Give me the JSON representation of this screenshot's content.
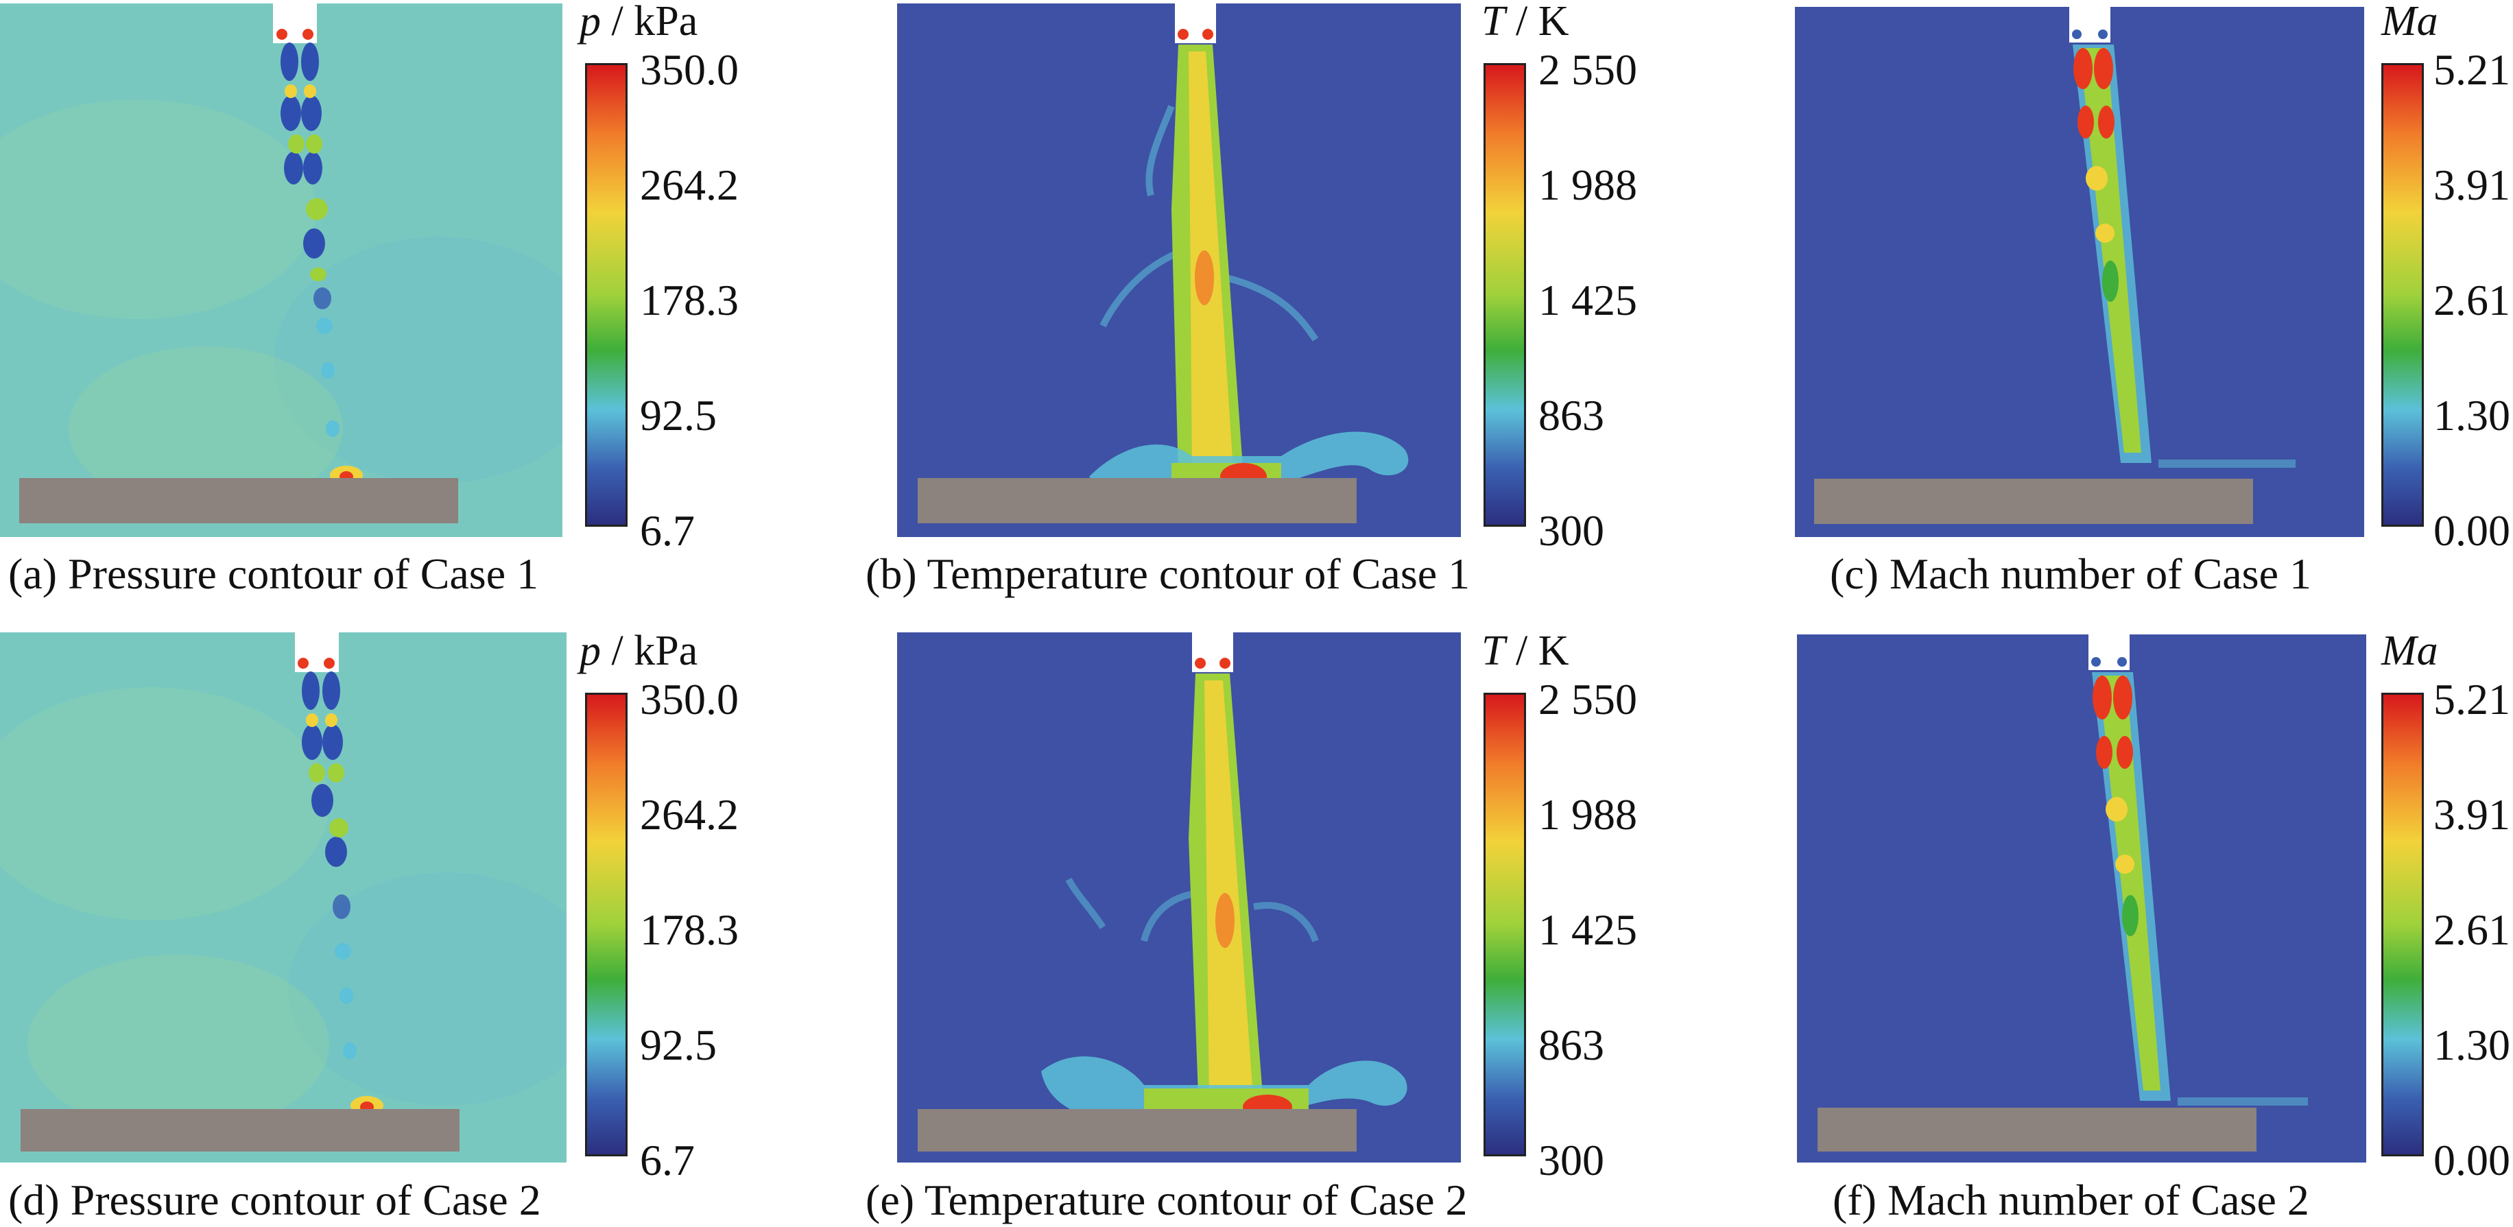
{
  "panels": [
    {
      "id": "a",
      "field": "pressure",
      "caption": "(a) Pressure contour of Case 1",
      "cb_symbol": "p",
      "cb_unit": " / kPa",
      "ticks": [
        "350.0",
        "264.2",
        "178.3",
        "92.5",
        "6.7"
      ]
    },
    {
      "id": "b",
      "field": "temperature",
      "caption": "(b) Temperature contour of Case 1",
      "cb_symbol": "T",
      "cb_unit": " / K",
      "ticks": [
        "2 550",
        "1 988",
        "1 425",
        "863",
        "300"
      ]
    },
    {
      "id": "c",
      "field": "mach",
      "caption": "(c) Mach number of Case 1",
      "cb_symbol": "Ma",
      "cb_unit": "",
      "ticks": [
        "5.21",
        "3.91",
        "2.61",
        "1.30",
        "0.00"
      ]
    },
    {
      "id": "d",
      "field": "pressure",
      "caption": "(d) Pressure contour of Case 2",
      "cb_symbol": "p",
      "cb_unit": " / kPa",
      "ticks": [
        "350.0",
        "264.2",
        "178.3",
        "92.5",
        "6.7"
      ]
    },
    {
      "id": "e",
      "field": "temperature",
      "caption": "(e) Temperature contour of Case 2",
      "cb_symbol": "T",
      "cb_unit": " / K",
      "ticks": [
        "2 550",
        "1 988",
        "1 425",
        "863",
        "300"
      ]
    },
    {
      "id": "f",
      "field": "mach",
      "caption": "(f) Mach number of Case 2",
      "cb_symbol": "Ma",
      "cb_unit": "",
      "ticks": [
        "5.21",
        "3.91",
        "2.61",
        "1.30",
        "0.00"
      ]
    }
  ],
  "colors": {
    "colormap": [
      "#d7191c",
      "#f17c2a",
      "#f2d23a",
      "#9fd13b",
      "#3fae3a",
      "#5cc1d9",
      "#3a5fb0",
      "#2c2f80"
    ],
    "pressure_background": "#79c8c0",
    "low_background": "#3e51a4",
    "plate": "#8c827e",
    "nozzle": "#ffffff",
    "jet_core": "#f2d23a",
    "jet_mid": "#9fd13b",
    "hot_spot": "#e8391e"
  }
}
